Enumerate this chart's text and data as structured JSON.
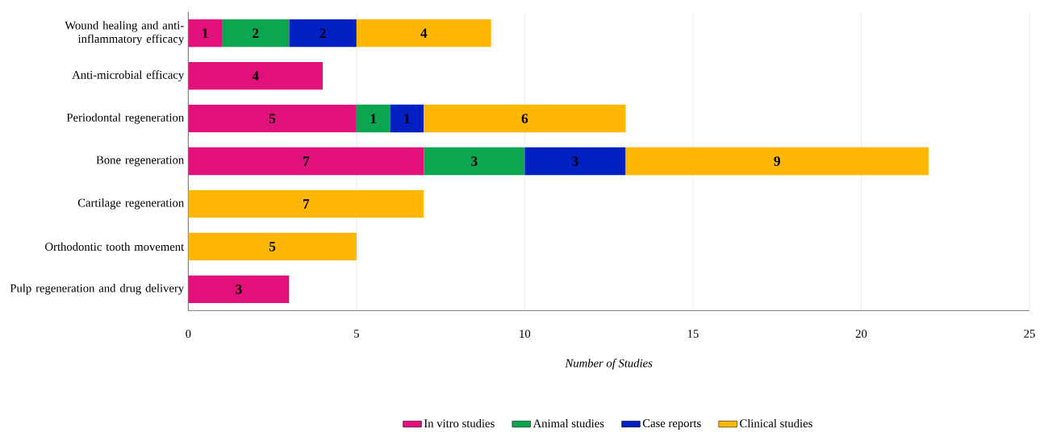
{
  "chart_data": {
    "type": "bar",
    "orientation": "horizontal",
    "stacked": true,
    "xlabel": "Number of Studies",
    "categories": [
      "Wound healing and anti-inflammatory efficacy",
      "Anti-microbial efficacy",
      "Periodontal regeneration",
      "Bone regeneration",
      "Cartilage regeneration",
      "Orthodontic tooth movement",
      "Pulp regeneration and drug delivery"
    ],
    "series": [
      {
        "name": "In vitro studies",
        "color": "#e2107b",
        "values": [
          1,
          4,
          5,
          7,
          null,
          null,
          3
        ]
      },
      {
        "name": "Animal studies",
        "color": "#0ca550",
        "values": [
          2,
          null,
          1,
          3,
          null,
          null,
          null
        ]
      },
      {
        "name": "Case reports",
        "color": "#0020c2",
        "values": [
          2,
          null,
          1,
          3,
          null,
          null,
          null
        ]
      },
      {
        "name": "Clinical studies",
        "color": "#ffb703",
        "values": [
          4,
          null,
          6,
          9,
          7,
          5,
          null
        ]
      }
    ],
    "xlim": [
      0,
      25
    ],
    "xticks": [
      0,
      5,
      10,
      15,
      20,
      25
    ],
    "grid": "x",
    "legend": "bottom",
    "data_labels": true
  }
}
